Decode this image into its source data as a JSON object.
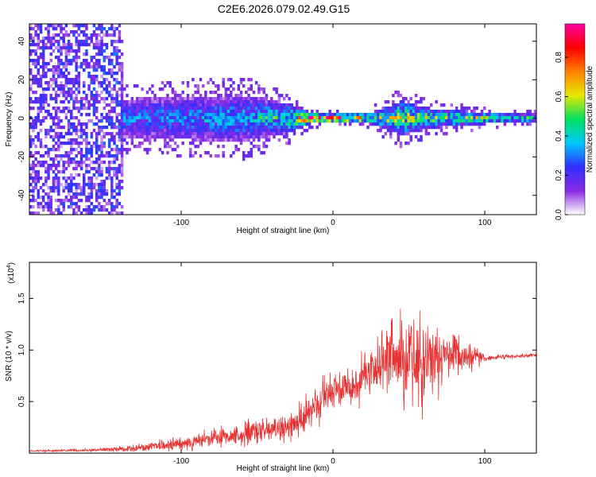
{
  "title": "C2E6.2026.079.02.49.G15",
  "chart_data": [
    {
      "type": "heatmap",
      "title": "C2E6.2026.079.02.49.G15",
      "xlabel": "Height of straight line (km)",
      "ylabel": "Frequency (Hz)",
      "xlim": [
        -200,
        134
      ],
      "ylim": [
        -50,
        49
      ],
      "x_ticks": [
        -100,
        0,
        100
      ],
      "x_tick_labels": [
        "-100",
        "0",
        "100"
      ],
      "y_ticks": [
        -40,
        -20,
        0,
        20,
        40
      ],
      "y_tick_labels": [
        "-40",
        "-20",
        "0",
        "20",
        "40"
      ],
      "colorbar": {
        "label": "Normalized spectral amplitude",
        "range": [
          0,
          0.97
        ],
        "ticks": [
          0.0,
          0.2,
          0.4,
          0.6,
          0.8
        ],
        "tick_labels": [
          "0.0",
          "0.2",
          "0.4",
          "0.6",
          "0.8"
        ],
        "colors": [
          "#ffffff",
          "#8a2be2",
          "#3030ff",
          "#00c8ff",
          "#00e060",
          "#e8e800",
          "#ff8000",
          "#ff0000",
          "#ff00a0"
        ]
      },
      "band_profile": [
        {
          "x": -200,
          "halfwidth": 48,
          "amp": 0.15
        },
        {
          "x": -140,
          "halfwidth": 45,
          "amp": 0.18
        },
        {
          "x": -138,
          "halfwidth": 10,
          "amp": 0.3
        },
        {
          "x": -100,
          "halfwidth": 11,
          "amp": 0.32
        },
        {
          "x": -60,
          "halfwidth": 12,
          "amp": 0.35
        },
        {
          "x": -30,
          "halfwidth": 8,
          "amp": 0.45
        },
        {
          "x": -15,
          "halfwidth": 3,
          "amp": 0.8
        },
        {
          "x": 0,
          "halfwidth": 2,
          "amp": 0.85
        },
        {
          "x": 25,
          "halfwidth": 3,
          "amp": 0.55
        },
        {
          "x": 45,
          "halfwidth": 9,
          "amp": 0.55
        },
        {
          "x": 65,
          "halfwidth": 5,
          "amp": 0.5
        },
        {
          "x": 100,
          "halfwidth": 3,
          "amp": 0.55
        },
        {
          "x": 134,
          "halfwidth": 2,
          "amp": 0.45
        }
      ]
    },
    {
      "type": "line",
      "xlabel": "Height of straight line (km)",
      "ylabel": "SNR (10 * v/v)",
      "scale_label": "(x10",
      "scale_exponent": "4",
      "scale_close": ")",
      "xlim": [
        -200,
        134
      ],
      "ylim": [
        0,
        1.85
      ],
      "x_ticks": [
        -100,
        0,
        100
      ],
      "x_tick_labels": [
        "-100",
        "0",
        "100"
      ],
      "y_ticks": [
        0.5,
        1.0,
        1.5
      ],
      "y_tick_labels": [
        "0.5",
        "1.0",
        "1.5"
      ],
      "color": "#e83030",
      "series": [
        {
          "name": "SNR",
          "x": [
            -200,
            -160,
            -140,
            -120,
            -100,
            -80,
            -60,
            -40,
            -25,
            -15,
            -5,
            5,
            15,
            25,
            35,
            45,
            55,
            65,
            75,
            85,
            95,
            100,
            110,
            120,
            134
          ],
          "mean": [
            0.02,
            0.03,
            0.04,
            0.06,
            0.09,
            0.14,
            0.18,
            0.22,
            0.3,
            0.38,
            0.55,
            0.62,
            0.7,
            0.8,
            0.88,
            0.95,
            0.92,
            0.9,
            0.92,
            0.93,
            0.95,
            0.92,
            0.93,
            0.94,
            0.95
          ],
          "spread": [
            0.01,
            0.02,
            0.04,
            0.06,
            0.1,
            0.12,
            0.15,
            0.18,
            0.22,
            0.28,
            0.3,
            0.25,
            0.3,
            0.35,
            0.5,
            0.7,
            0.75,
            0.55,
            0.35,
            0.25,
            0.2,
            0.04,
            0.03,
            0.03,
            0.03
          ]
        }
      ]
    }
  ]
}
